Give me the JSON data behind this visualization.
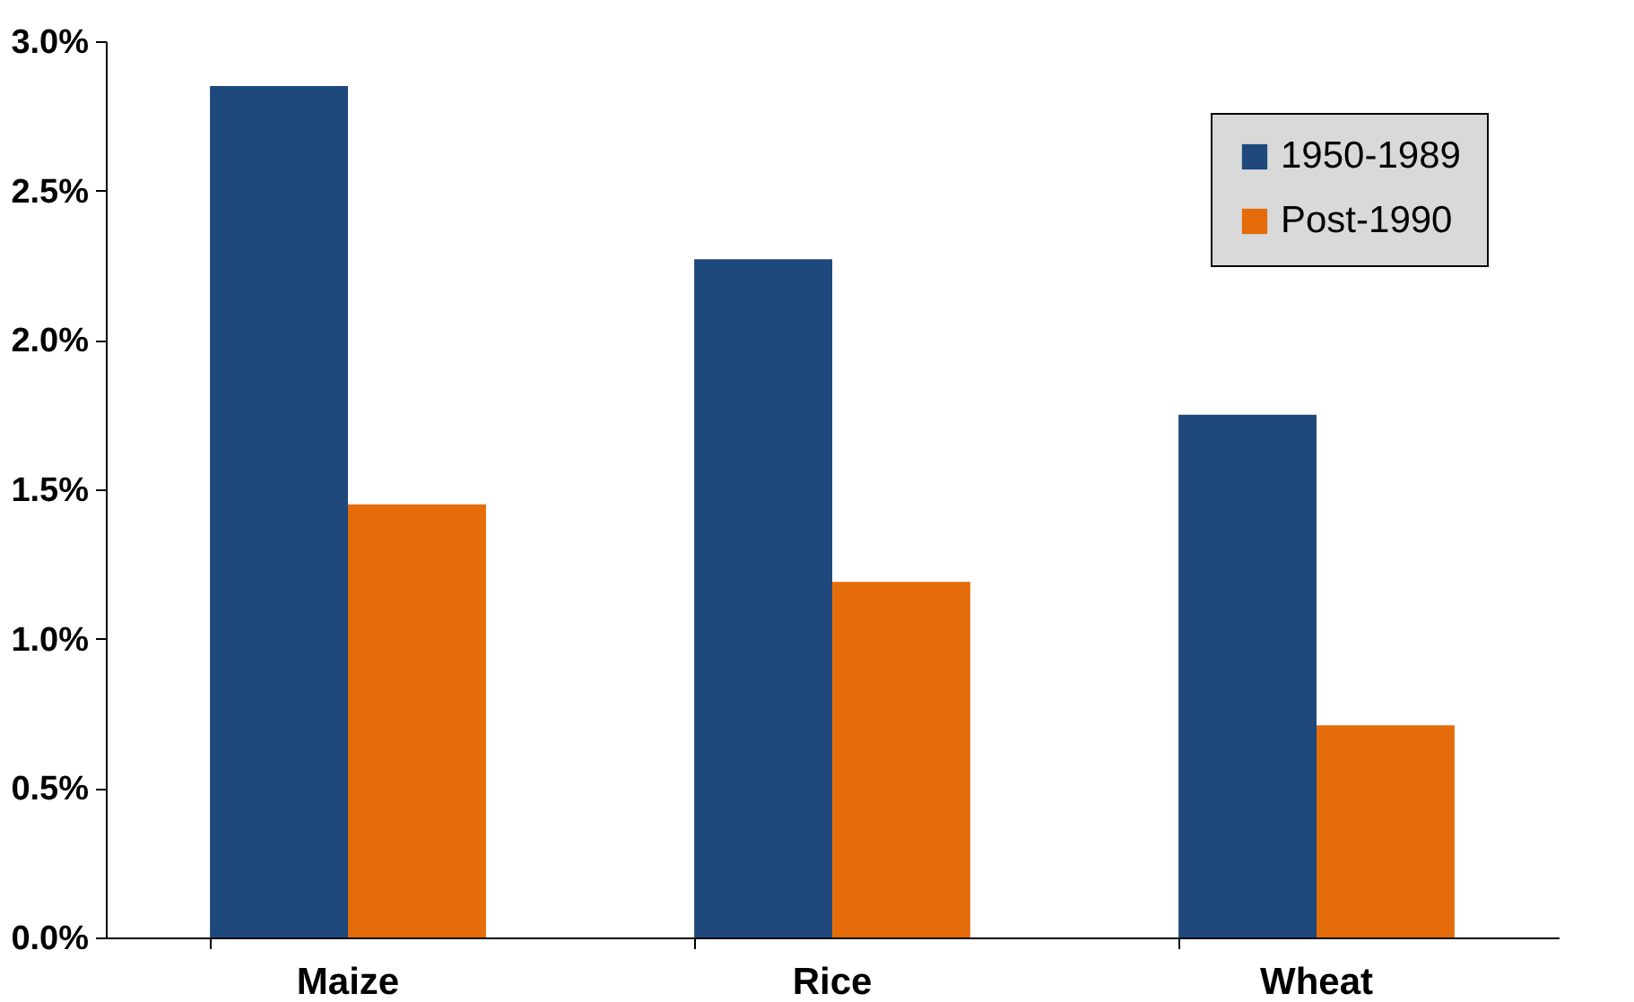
{
  "chart_data": {
    "type": "bar",
    "categories": [
      "Maize",
      "Rice",
      "Wheat"
    ],
    "series": [
      {
        "name": "1950-1989",
        "color": "#1f497d",
        "values": [
          2.85,
          2.27,
          1.75
        ]
      },
      {
        "name": "Post-1990",
        "color": "#e46c0a",
        "values": [
          1.45,
          1.19,
          0.71
        ]
      }
    ],
    "ylim": [
      0,
      3
    ],
    "yticks": [
      {
        "value": 0,
        "label": "0.0%"
      },
      {
        "value": 0.5,
        "label": "0.5%"
      },
      {
        "value": 1,
        "label": "1.0%"
      },
      {
        "value": 1.5,
        "label": "1.5%"
      },
      {
        "value": 2,
        "label": "2.0%"
      },
      {
        "value": 2.5,
        "label": "2.5%"
      },
      {
        "value": 3,
        "label": "3.0%"
      }
    ],
    "grid": false,
    "legend": "top right"
  }
}
